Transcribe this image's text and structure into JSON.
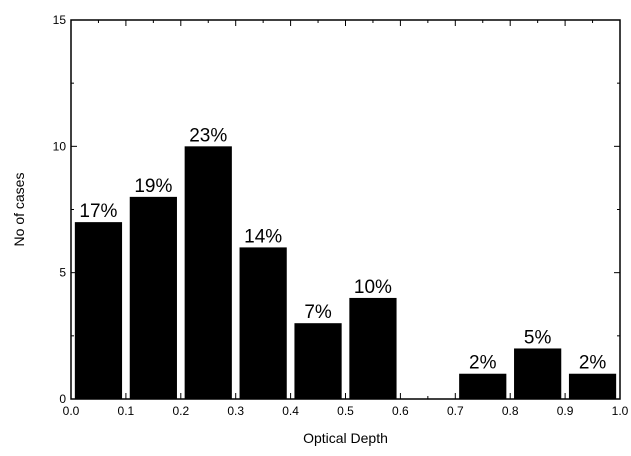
{
  "chart_data": {
    "type": "bar",
    "xlabel": "Optical Depth",
    "ylabel": "No of cases",
    "xlim": [
      0.0,
      1.0
    ],
    "ylim": [
      0,
      15
    ],
    "x_ticks": [
      "0.0",
      "0.1",
      "0.2",
      "0.3",
      "0.4",
      "0.5",
      "0.6",
      "0.7",
      "0.8",
      "0.9",
      "1.0"
    ],
    "y_ticks": [
      "0",
      "5",
      "10",
      "15"
    ],
    "bar_color": "#000000",
    "grid": false,
    "bars": [
      {
        "x_start": 0.0,
        "x_end": 0.1,
        "value": 7,
        "label": "17%"
      },
      {
        "x_start": 0.1,
        "x_end": 0.2,
        "value": 8,
        "label": "19%"
      },
      {
        "x_start": 0.2,
        "x_end": 0.3,
        "value": 10,
        "label": "23%"
      },
      {
        "x_start": 0.3,
        "x_end": 0.4,
        "value": 6,
        "label": "14%"
      },
      {
        "x_start": 0.4,
        "x_end": 0.5,
        "value": 3,
        "label": "7%"
      },
      {
        "x_start": 0.5,
        "x_end": 0.6,
        "value": 4,
        "label": "10%"
      },
      {
        "x_start": 0.7,
        "x_end": 0.8,
        "value": 1,
        "label": "2%"
      },
      {
        "x_start": 0.8,
        "x_end": 0.9,
        "value": 2,
        "label": "5%"
      },
      {
        "x_start": 0.9,
        "x_end": 1.0,
        "value": 1,
        "label": "2%"
      }
    ]
  }
}
